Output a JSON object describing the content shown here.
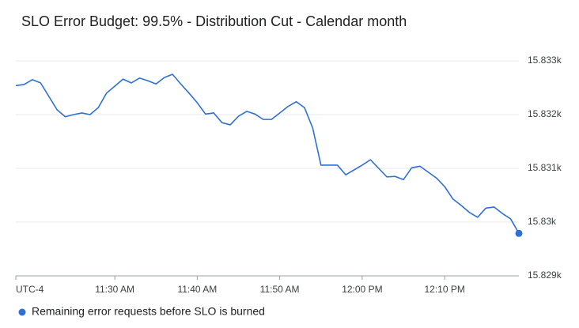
{
  "chart_data": {
    "type": "line",
    "title": "SLO Error Budget: 99.5% - Distribution Cut - Calendar month",
    "x_axis_note": "UTC-4",
    "x": [
      "11:18",
      "11:19",
      "11:20",
      "11:21",
      "11:22",
      "11:23",
      "11:24",
      "11:25",
      "11:26",
      "11:27",
      "11:28",
      "11:29",
      "11:30",
      "11:31",
      "11:32",
      "11:33",
      "11:34",
      "11:35",
      "11:36",
      "11:37",
      "11:38",
      "11:39",
      "11:40",
      "11:41",
      "11:42",
      "11:43",
      "11:44",
      "11:45",
      "11:46",
      "11:47",
      "11:48",
      "11:49",
      "11:50",
      "11:51",
      "11:52",
      "11:53",
      "11:54",
      "11:55",
      "11:56",
      "11:57",
      "11:58",
      "11:59",
      "12:00",
      "12:01",
      "12:02",
      "12:03",
      "12:04",
      "12:05",
      "12:06",
      "12:07",
      "12:08",
      "12:09",
      "12:10",
      "12:11",
      "12:12",
      "12:13",
      "12:14",
      "12:15",
      "12:16",
      "12:17",
      "12:18",
      "12:19"
    ],
    "series": [
      {
        "name": "Remaining error requests before SLO is burned",
        "color": "#2f6fd8",
        "values": [
          15832.54,
          15832.56,
          15832.65,
          15832.59,
          15832.34,
          15832.09,
          15831.96,
          15832.0,
          15832.03,
          15832.0,
          15832.13,
          15832.4,
          15832.53,
          15832.66,
          15832.59,
          15832.68,
          15832.63,
          15832.57,
          15832.69,
          15832.75,
          15832.57,
          15832.4,
          15832.22,
          15832.01,
          15832.03,
          15831.85,
          15831.81,
          15831.97,
          15832.06,
          15832.01,
          15831.91,
          15831.91,
          15832.03,
          15832.15,
          15832.24,
          15832.13,
          15831.75,
          15831.06,
          15831.06,
          15831.06,
          15830.88,
          15830.97,
          15831.06,
          15831.16,
          15831.0,
          15830.84,
          15830.85,
          15830.79,
          15831.01,
          15831.04,
          15830.93,
          15830.82,
          15830.66,
          15830.43,
          15830.31,
          15830.18,
          15830.09,
          15830.26,
          15830.28,
          15830.16,
          15830.06,
          15829.79
        ]
      }
    ],
    "xlim": [
      "11:18",
      "12:19"
    ],
    "xticks": [
      {
        "value": "11:30",
        "label": "11:30 AM"
      },
      {
        "value": "11:40",
        "label": "11:40 AM"
      },
      {
        "value": "11:50",
        "label": "11:50 AM"
      },
      {
        "value": "12:00",
        "label": "12:00 PM"
      },
      {
        "value": "12:10",
        "label": "12:10 PM"
      }
    ],
    "ylim": [
      15829,
      15833
    ],
    "yticks": [
      {
        "value": 15829,
        "label": "15.829k"
      },
      {
        "value": 15830,
        "label": "15.83k"
      },
      {
        "value": 15831,
        "label": "15.831k"
      },
      {
        "value": 15832,
        "label": "15.832k"
      },
      {
        "value": 15833,
        "label": "15.833k"
      }
    ],
    "grid": true,
    "legend": "bottom-left"
  }
}
